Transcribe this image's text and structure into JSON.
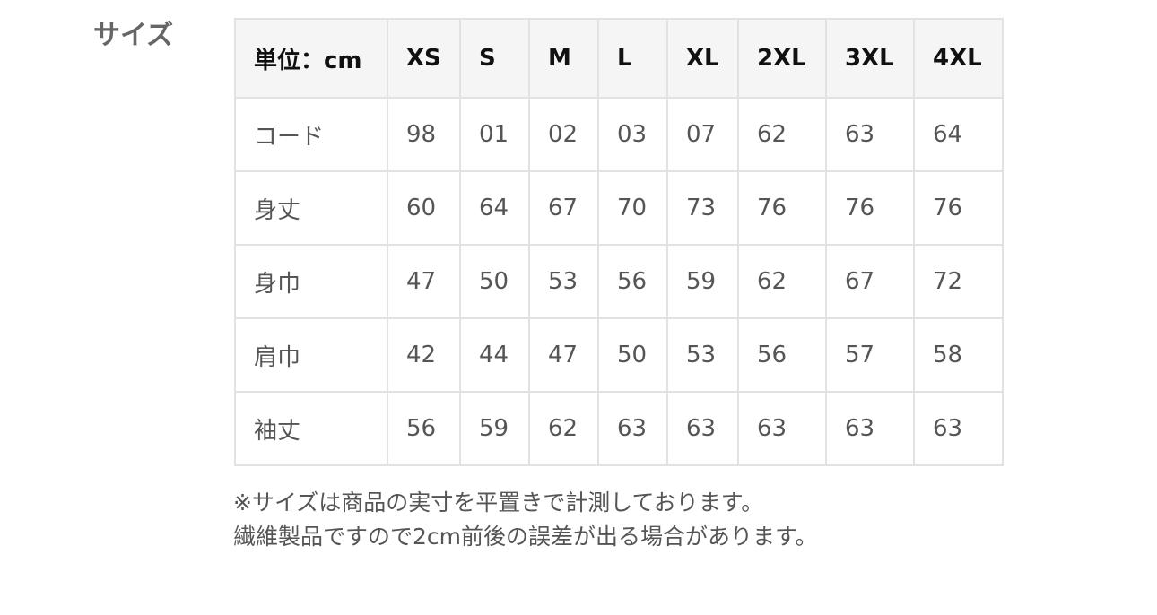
{
  "title": "サイズ",
  "table": {
    "headers": [
      "単位：cm",
      "XS",
      "S",
      "M",
      "L",
      "XL",
      "2XL",
      "3XL",
      "4XL"
    ],
    "rows": [
      [
        "コード",
        "98",
        "01",
        "02",
        "03",
        "07",
        "62",
        "63",
        "64"
      ],
      [
        "身丈",
        "60",
        "64",
        "67",
        "70",
        "73",
        "76",
        "76",
        "76"
      ],
      [
        "身巾",
        "47",
        "50",
        "53",
        "56",
        "59",
        "62",
        "67",
        "72"
      ],
      [
        "肩巾",
        "42",
        "44",
        "47",
        "50",
        "53",
        "56",
        "57",
        "58"
      ],
      [
        "袖丈",
        "56",
        "59",
        "62",
        "63",
        "63",
        "63",
        "63",
        "63"
      ]
    ]
  },
  "notes": [
    "※サイズは商品の実寸を平置きで計測しております。",
    "繊維製品ですので2cm前後の誤差が出る場合があります。"
  ]
}
